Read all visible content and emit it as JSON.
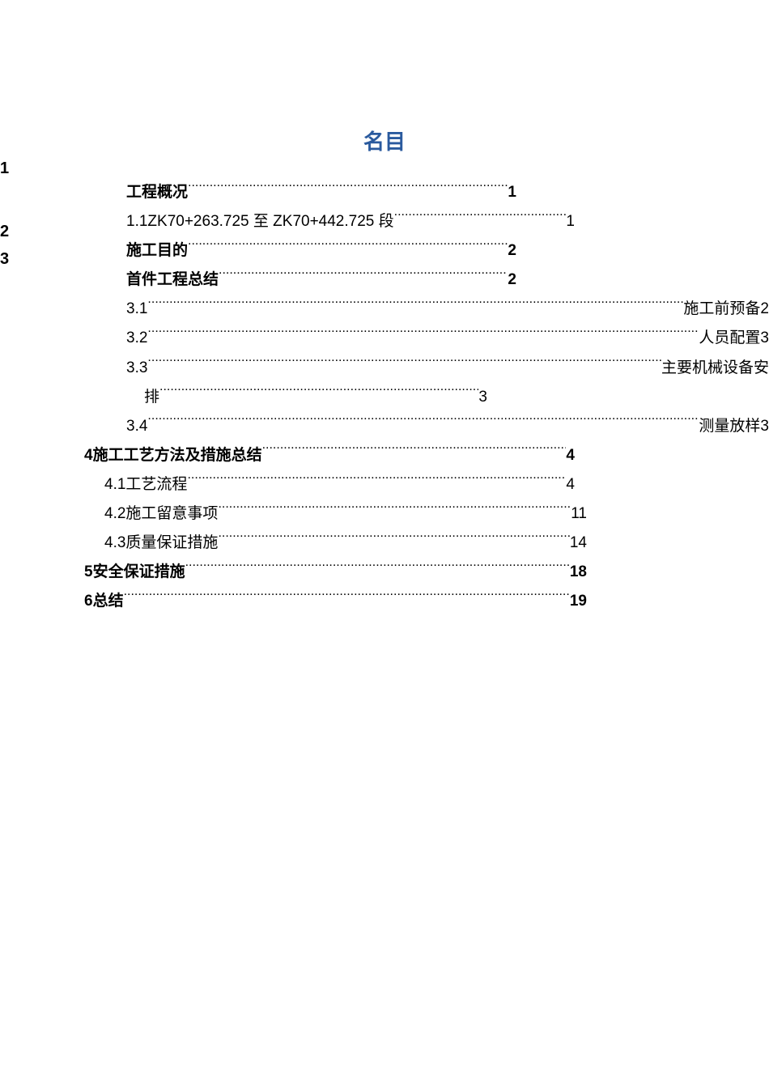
{
  "title": "名目",
  "title_color": "#2a5a9e",
  "side_numbers": [
    "1",
    "2",
    "3"
  ],
  "rows": [
    {
      "num": "",
      "label": "工程概况",
      "page": "1",
      "bold": true,
      "style": "ind-a"
    },
    {
      "num": "1.1 ",
      "label": "ZK70+263.725 至 ZK70+442.725 段",
      "page": "1",
      "bold": false,
      "style": "ind-a2"
    },
    {
      "num": "",
      "label": "施工目的",
      "page": "2",
      "bold": true,
      "style": "ind-a"
    },
    {
      "num": "",
      "label": "首件工程总结",
      "page": "2",
      "bold": true,
      "style": "ind-a"
    },
    {
      "num": "3.1",
      "label": "施工前预备",
      "page": "  2",
      "bold": false,
      "style": "ind-b",
      "trail": true
    },
    {
      "num": "3.2",
      "label": "人员配置",
      "page": "3",
      "bold": false,
      "style": "ind-b",
      "trail": true
    },
    {
      "num": "3.3",
      "label": "主要机械设备安",
      "page": "",
      "bold": false,
      "style": "ind-b",
      "trail": true,
      "wrap_label": "排",
      "wrap_page": "3"
    },
    {
      "num": "3.4",
      "label": "测量放样",
      "page": "3",
      "bold": false,
      "style": "ind-b",
      "trail": true
    },
    {
      "num": "4 ",
      "label": "施工工艺方法及措施总结",
      "page": "4",
      "bold": true,
      "style": "ind-c"
    },
    {
      "num": "4.1",
      "label": "工艺流程",
      "page": " 4",
      "bold": false,
      "style": "ind-c2"
    },
    {
      "num": "4.2",
      "label": "施工留意事项",
      "page": "11",
      "bold": false,
      "style": "ind-c3"
    },
    {
      "num": "4.3",
      "label": "质量保证措施",
      "page": "14",
      "bold": false,
      "style": "ind-c3"
    },
    {
      "num": "5 ",
      "label": "安全保证措施",
      "page": "18",
      "bold": true,
      "style": "ind-d"
    },
    {
      "num": "6  ",
      "label": "总结",
      "page": " 19",
      "bold": true,
      "style": "ind-d"
    }
  ]
}
